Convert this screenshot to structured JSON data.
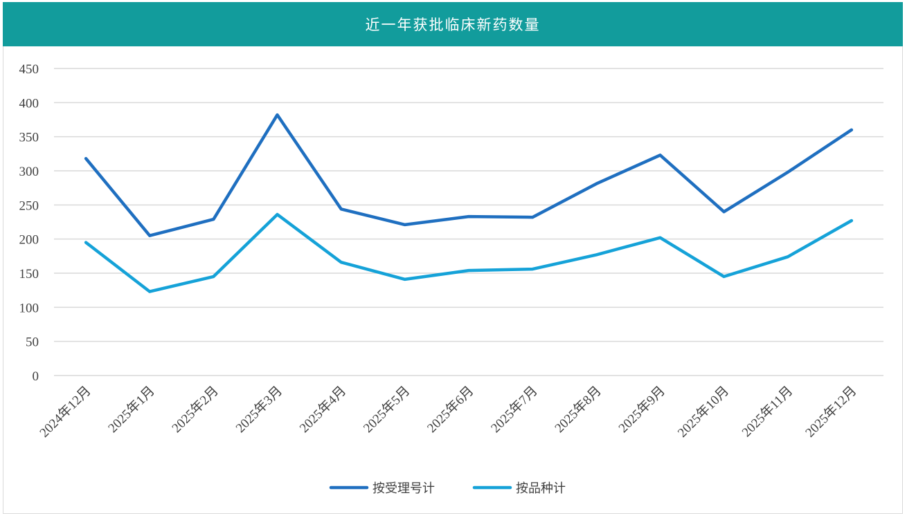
{
  "title": "近一年获批临床新药数量",
  "colors": {
    "title_bg": "#129c9c",
    "series_1": "#1f6fc0",
    "series_2": "#15a2d8",
    "grid": "#d9d9d9"
  },
  "chart_data": {
    "type": "line",
    "title": "近一年获批临床新药数量",
    "categories": [
      "2024年12月",
      "2025年1月",
      "2025年2月",
      "2025年3月",
      "2025年4月",
      "2025年5月",
      "2025年6月",
      "2025年7月",
      "2025年8月",
      "2025年9月",
      "2025年10月",
      "2025年11月",
      "2025年12月"
    ],
    "series": [
      {
        "name": "按受理号计",
        "values": [
          318,
          205,
          229,
          382,
          244,
          221,
          233,
          232,
          281,
          323,
          240,
          298,
          360
        ]
      },
      {
        "name": "按品种计",
        "values": [
          195,
          123,
          145,
          236,
          166,
          141,
          154,
          156,
          177,
          202,
          145,
          174,
          227
        ]
      }
    ],
    "ylim": [
      0,
      450
    ],
    "yticks": [
      0,
      50,
      100,
      150,
      200,
      250,
      300,
      350,
      400,
      450
    ],
    "grid": true,
    "legend_position": "bottom"
  }
}
